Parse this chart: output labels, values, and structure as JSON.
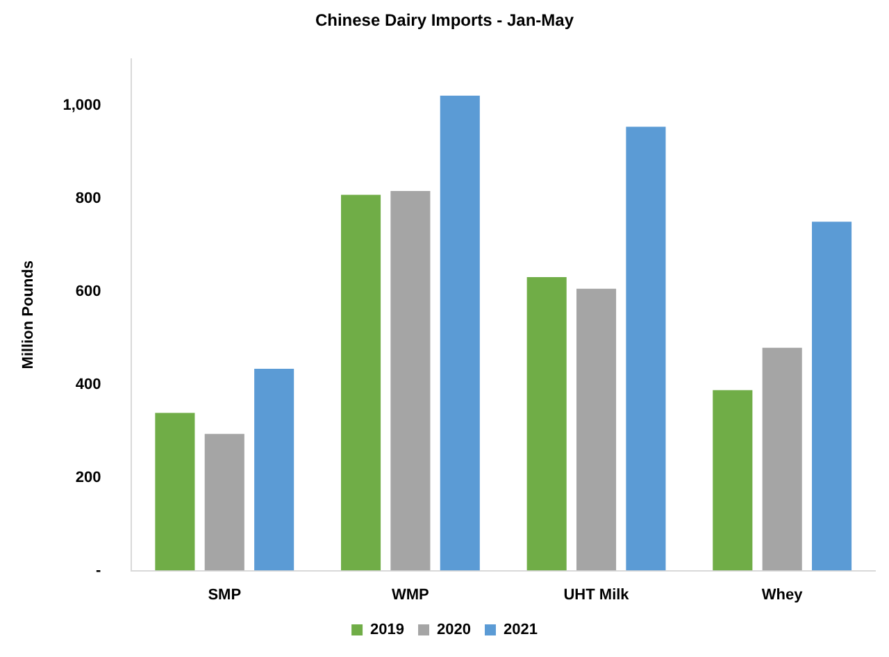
{
  "chart_data": {
    "type": "bar",
    "title": "Chinese Dairy Imports - Jan-May",
    "ylabel": "Million Pounds",
    "categories": [
      "SMP",
      "WMP",
      "UHT Milk",
      "Whey"
    ],
    "series": [
      {
        "name": "2019",
        "color": "#70ad47",
        "values": [
          339,
          808,
          631,
          388
        ]
      },
      {
        "name": "2020",
        "color": "#a5a5a5",
        "values": [
          294,
          816,
          606,
          479
        ]
      },
      {
        "name": "2021",
        "color": "#5b9bd5",
        "values": [
          434,
          1021,
          954,
          750
        ]
      }
    ],
    "ylim": [
      0,
      1100
    ],
    "yticks": [
      {
        "value": 0,
        "label": "-"
      },
      {
        "value": 200,
        "label": "200"
      },
      {
        "value": 400,
        "label": "400"
      },
      {
        "value": 600,
        "label": "600"
      },
      {
        "value": 800,
        "label": "800"
      },
      {
        "value": 1000,
        "label": "1,000"
      }
    ],
    "grid": false,
    "legend": "bottom"
  }
}
